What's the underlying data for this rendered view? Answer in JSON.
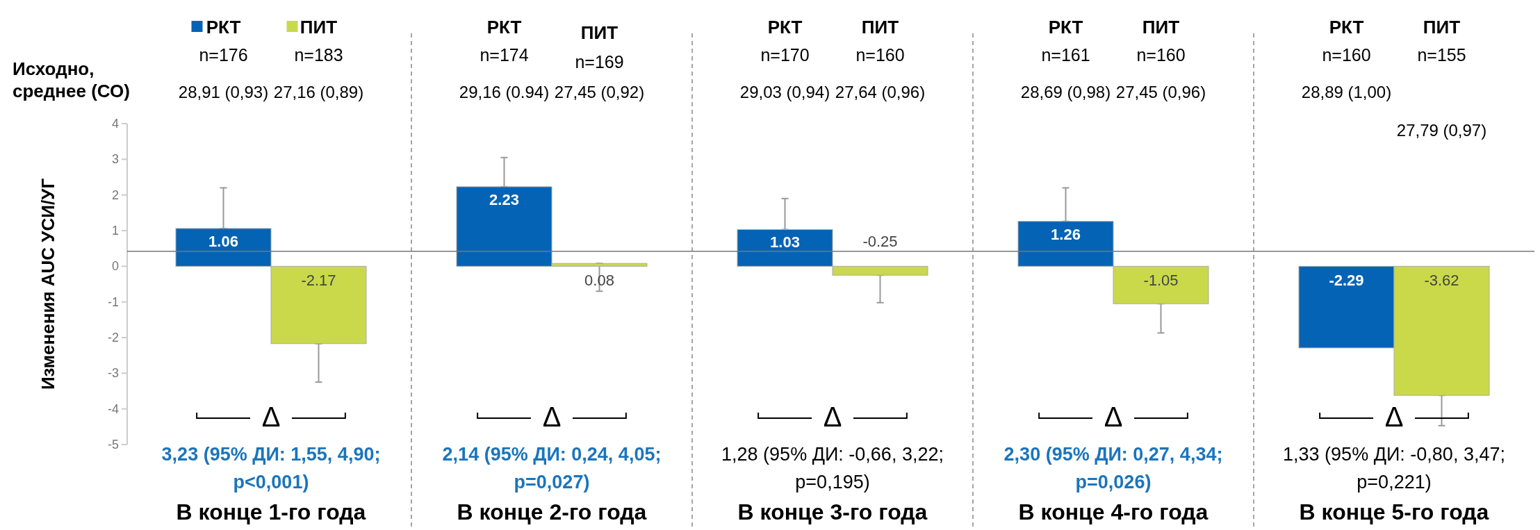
{
  "chart_data": {
    "type": "bar",
    "ylabel": "Изменения AUC УСИ/УГ",
    "categories": [
      "В конце 1-го года",
      "В конце 2-го года",
      "В конце 3-го года",
      "В конце 4-го года",
      "В конце 5-го года"
    ],
    "series": [
      {
        "name": "РКТ",
        "color": "#0563b5",
        "values": [
          1.06,
          2.23,
          1.03,
          1.26,
          -2.29
        ],
        "errors": [
          [
            1.06,
            2.2
          ],
          [
            2.23,
            3.05
          ],
          [
            1.03,
            1.9
          ],
          [
            1.26,
            2.2
          ],
          null
        ]
      },
      {
        "name": "ПИТ",
        "color": "#c9d94a",
        "values": [
          -2.17,
          0.08,
          -0.25,
          -1.05,
          -3.62
        ],
        "errors": [
          [
            -3.25,
            -2.17
          ],
          [
            -0.7,
            0.08
          ],
          [
            -1.02,
            -0.25
          ],
          [
            -1.87,
            -1.05
          ],
          [
            -4.47,
            -3.62
          ]
        ]
      }
    ],
    "ylim": [
      -5,
      4
    ],
    "yticks": [
      -5,
      -4,
      -3,
      -2,
      -1,
      0,
      1,
      2,
      3,
      4
    ],
    "grid": false,
    "legend": "top",
    "data_labels": true,
    "ref_lines": [
      {
        "axis": "y",
        "value": 0.42,
        "color": "#777777"
      }
    ],
    "annotations": [
      "Исходно,\nсреднее (СО)",
      "n=176",
      "n=183",
      "28,91 (0,93)",
      "27,16 (0,89)",
      "Δ",
      "3,23 (95% ДИ: 1,55, 4,90;\np<0,001)",
      "n=174",
      "n=169",
      "29,16 (0.94)",
      "27,45 (0,92)",
      "Δ",
      "2,14 (95% ДИ: 0,24, 4,05;\np=0,027)",
      "n=170",
      "n=160",
      "29,03 (0,94)",
      "27,64 (0,96)",
      "Δ",
      "1,28 (95% ДИ: -0,66, 3,22;\np=0,195)",
      "n=161",
      "n=160",
      "28,69 (0,98)",
      "27,45 (0,96)",
      "Δ",
      "2,30 (95% ДИ: 0,27, 4,34;\np=0,026)",
      "n=160",
      "n=155",
      "28,89 (1,00)",
      "27,79 (0,97)",
      "Δ",
      "1,33 (95% ДИ: -0,80, 3,47;\np=0,221)"
    ]
  }
}
